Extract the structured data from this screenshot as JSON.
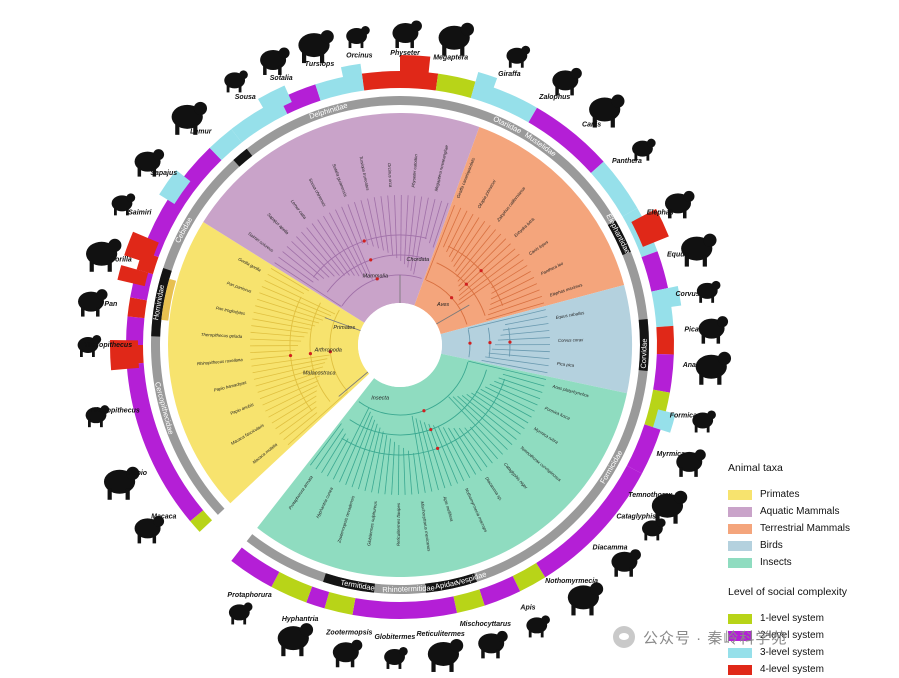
{
  "legend": {
    "taxa_title": "Animal taxa",
    "taxa": [
      {
        "label": "Primates",
        "color": "#f7e36e"
      },
      {
        "label": "Aquatic Mammals",
        "color": "#c9a3c9"
      },
      {
        "label": "Terrestrial Mammals",
        "color": "#f4a57c"
      },
      {
        "label": "Birds",
        "color": "#b4d1de"
      },
      {
        "label": "Insects",
        "color": "#8fdcc0"
      }
    ],
    "levels_title": "Level of social complexity",
    "levels": [
      {
        "label": "1-level system",
        "color": "#b8d418"
      },
      {
        "label": "2-level system",
        "color": "#b41fd6"
      },
      {
        "label": "3-level system",
        "color": "#96e0ea"
      },
      {
        "label": "4-level system",
        "color": "#e02818"
      }
    ]
  },
  "taxa_labels": [
    {
      "name": "Theropithecus",
      "a": 180
    },
    {
      "name": "Pan",
      "a": 188
    },
    {
      "name": "Gorilla",
      "a": 197
    },
    {
      "name": "Saimiri",
      "a": 207
    },
    {
      "name": "Sapajus",
      "a": 216
    },
    {
      "name": "Lemur",
      "a": 227
    },
    {
      "name": "Sousa",
      "a": 238
    },
    {
      "name": "Sotalia",
      "a": 246
    },
    {
      "name": "Tursiops",
      "a": 254
    },
    {
      "name": "Orcinus",
      "a": 262
    },
    {
      "name": "Physeter",
      "a": 271
    },
    {
      "name": "Megaptera",
      "a": 280
    },
    {
      "name": "Giraffa",
      "a": 292
    },
    {
      "name": "Zalophus",
      "a": 302
    },
    {
      "name": "Canis",
      "a": 311
    },
    {
      "name": "Panthera",
      "a": 321
    },
    {
      "name": "Elephas",
      "a": 333
    },
    {
      "name": "Equus",
      "a": 342
    },
    {
      "name": "Corvus",
      "a": 350
    },
    {
      "name": "Pica",
      "a": 357
    },
    {
      "name": "Anas",
      "a": 4
    },
    {
      "name": "Formica",
      "a": 14
    },
    {
      "name": "Myrmica",
      "a": 22
    },
    {
      "name": "Temnothorax",
      "a": 31
    },
    {
      "name": "Cataglyphis",
      "a": 36
    },
    {
      "name": "Diacamma",
      "a": 44
    },
    {
      "name": "Nothomyrmecia",
      "a": 54
    },
    {
      "name": "Apis",
      "a": 64
    },
    {
      "name": "Mischocyttarus",
      "a": 73
    },
    {
      "name": "Reticulitermes",
      "a": 82
    },
    {
      "name": "Globitermes",
      "a": 91
    },
    {
      "name": "Zootermopsis",
      "a": 100
    },
    {
      "name": "Hyphantria",
      "a": 110
    },
    {
      "name": "Protaphorura",
      "a": 121
    },
    {
      "name": "Macaca",
      "a": 144
    },
    {
      "name": "Papio",
      "a": 154
    },
    {
      "name": "Rhinopithecus",
      "a": 167
    }
  ],
  "families": [
    {
      "name": "Cercopithecidae",
      "a": 165
    },
    {
      "name": "Hominidae",
      "a": 190
    },
    {
      "name": "Cebidae",
      "a": 208
    },
    {
      "name": "Delphinidae",
      "a": 253
    },
    {
      "name": "Otariidae",
      "a": 296
    },
    {
      "name": "Mustelidae",
      "a": 305
    },
    {
      "name": "Elephantidae",
      "a": 333
    },
    {
      "name": "Corvidae",
      "a": 2
    },
    {
      "name": "Formicidae",
      "a": 30
    },
    {
      "name": "Vespidae",
      "a": 73
    },
    {
      "name": "Apidae",
      "a": 79
    },
    {
      "name": "Rhinotermitidae",
      "a": 88
    },
    {
      "name": "Termitidae",
      "a": 100
    }
  ],
  "clades": [
    {
      "name": "Primates",
      "a": 196
    },
    {
      "name": "Mammalia",
      "a": 250
    },
    {
      "name": "Chordata",
      "a": 282
    },
    {
      "name": "Aves",
      "a": 318
    },
    {
      "name": "Arthropoda",
      "a": 175
    },
    {
      "name": "Malacostraca",
      "a": 160
    },
    {
      "name": "Insecta",
      "a": 110
    }
  ],
  "inner_species_labels": [
    "Macaca mulatta",
    "Macaca fascicularis",
    "Papio anubis",
    "Papio hamadryas",
    "Rhinopithecus roxellana",
    "Theropithecus gelada",
    "Pan troglodytes",
    "Pan paniscus",
    "Gorilla gorilla",
    "Saimiri sciureus",
    "Sapajus apella",
    "Lemur catta",
    "Sousa chinensis",
    "Sotalia guianensis",
    "Tursiops truncatus",
    "Orcinus orca",
    "Physeter catodon",
    "Megaptera novaeangliae",
    "Giraffa camelopardalis",
    "Okapia johnstoni",
    "Zalophus californianus",
    "Enhydra lutris",
    "Canis lupus",
    "Panthera leo",
    "Elephas maximus",
    "Equus caballus",
    "Corvus corax",
    "Pica pica",
    "Anas platyrhynchos",
    "Formica fusca",
    "Myrmica rubra",
    "Temnothorax curvispinosus",
    "Cataglyphis niger",
    "Diacamma sp.",
    "Nothomyrmecia macrops",
    "Apis mellifera",
    "Mischocyttarus mexicanus",
    "Reticulitermes flavipes",
    "Globitermes sulphureus",
    "Zootermopsis nevadensis",
    "Hyphantria cunea",
    "Protaphorura armata"
  ],
  "watermark": "公众号 · 秦岭科学苑"
}
